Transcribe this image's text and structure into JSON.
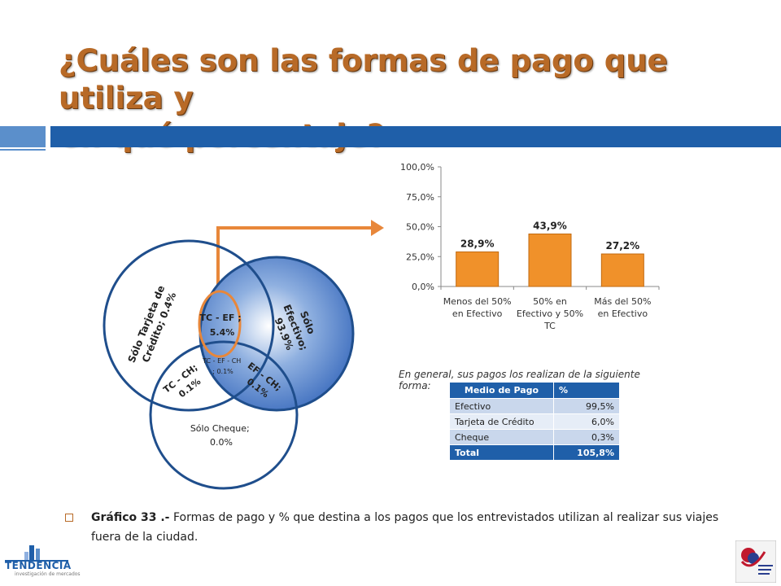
{
  "title": {
    "line1": "¿Cuáles son las formas de pago que utiliza y",
    "line2": "en qué porcentaje?"
  },
  "venn": {
    "solo_tarjeta_line1": "Sólo Tarjeta de",
    "solo_tarjeta_line2": "Crédito; 0.4%",
    "solo_efectivo_line1": "Sólo",
    "solo_efectivo_line2": "Efectivo;",
    "solo_efectivo_line3": "93.9%",
    "tc_ef_line1": "TC - EF ;",
    "tc_ef_line2": "5.4%",
    "tc_ef_ch_line1": "TC - EF - CH",
    "tc_ef_ch_line2": "; 0.1%",
    "tc_ch_line1": "TC - CH;",
    "tc_ch_line2": "0.1%",
    "ef_ch_line1": "EF - CH;",
    "ef_ch_line2": "0.1%",
    "solo_cheque_line1": "Sólo Cheque;",
    "solo_cheque_line2": "0.0%",
    "colors": {
      "circle_stroke": "#1f4e8c",
      "efectivo_fill": "#4d7fc9",
      "highlight": "#e8873a"
    }
  },
  "chart_data": {
    "type": "bar",
    "categories": [
      "Menos del 50% en Efectivo",
      "50% en Efectivo y 50% TC",
      "Más del 50% en Efectivo"
    ],
    "category_lines": [
      [
        "Menos del 50%",
        "en Efectivo"
      ],
      [
        "50% en",
        "Efectivo y 50%",
        "TC"
      ],
      [
        "Más del 50%",
        "en Efectivo"
      ]
    ],
    "values": [
      28.9,
      43.9,
      27.2
    ],
    "value_labels": [
      "28,9%",
      "43,9%",
      "27,2%"
    ],
    "yticks": [
      0,
      25,
      50,
      75,
      100
    ],
    "ytick_labels": [
      "0,0%",
      "25,0%",
      "50,0%",
      "75,0%",
      "100,0%"
    ],
    "ylim": [
      0,
      100
    ],
    "grid": false,
    "bar_color": "#f0912a"
  },
  "table": {
    "subtitle": "En general, sus pagos los realizan de la siguiente forma:",
    "headers": [
      "Medio de Pago",
      "%"
    ],
    "rows": [
      [
        "Efectivo",
        "99,5%"
      ],
      [
        "Tarjeta de Crédito",
        "6,0%"
      ],
      [
        "Cheque",
        "0,3%"
      ]
    ],
    "total": [
      "Total",
      "105,8%"
    ]
  },
  "caption": {
    "label": "Gráfico 33 .-",
    "text": " Formas de pago y % que destina a los pagos que los entrevistados utilizan al realizar sus viajes fuera de la ciudad."
  },
  "logo": {
    "name": "TENDENCIA",
    "tagline": "investigación de mercados"
  }
}
